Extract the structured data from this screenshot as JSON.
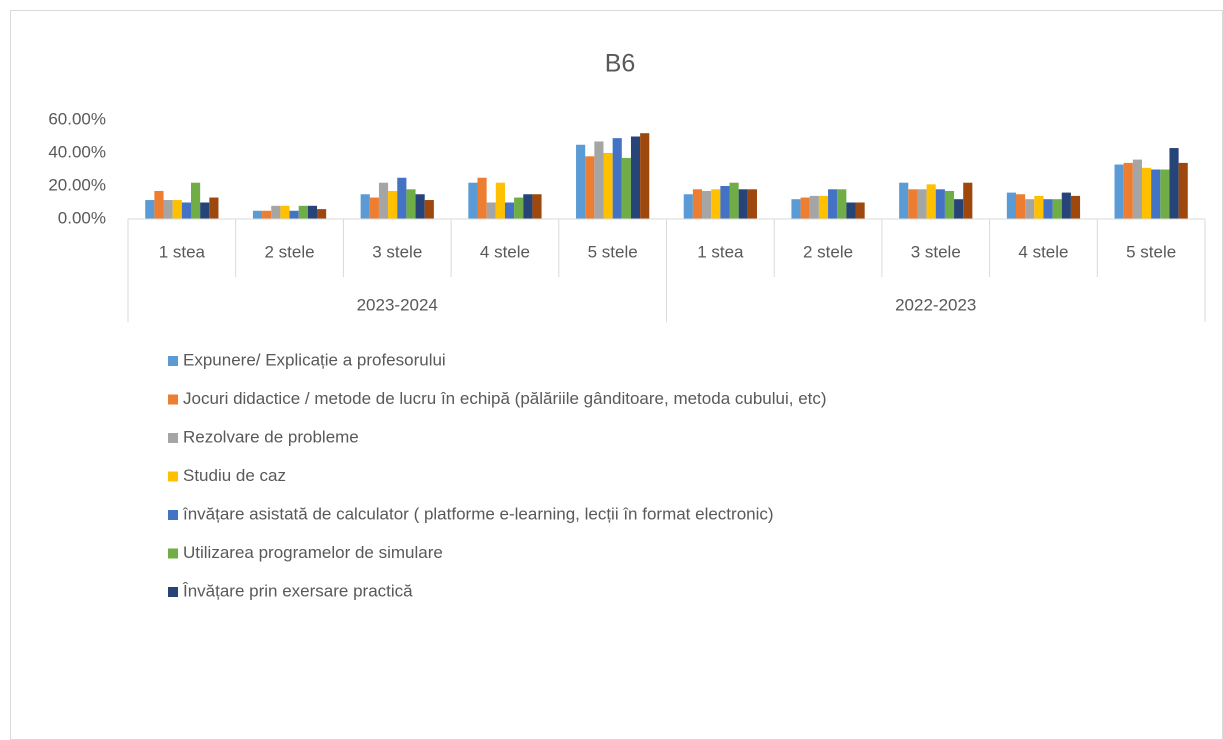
{
  "chart_data": {
    "type": "bar",
    "title": "B6",
    "groups": [
      {
        "name": "2023-2024",
        "categories": [
          "1 stea",
          "2 stele",
          "3 stele",
          "4 stele",
          "5 stele"
        ]
      },
      {
        "name": "2022-2023",
        "categories": [
          "1 stea",
          "2 stele",
          "3 stele",
          "4 stele",
          "5 stele"
        ]
      }
    ],
    "series": [
      {
        "name": "Expunere/ Explicație a profesorului",
        "color": "#5b9bd5",
        "values": [
          11.5,
          5,
          15,
          22,
          45,
          15,
          12,
          22,
          16,
          33
        ]
      },
      {
        "name": "Jocuri didactice / metode de lucru în echipă (pălăriile gânditoare, metoda cubului, etc)",
        "color": "#ed7d31",
        "values": [
          17,
          5,
          13,
          25,
          38,
          18,
          13,
          18,
          15,
          34
        ]
      },
      {
        "name": "Rezolvare de probleme",
        "color": "#a5a5a5",
        "values": [
          11.5,
          8,
          22,
          10,
          47,
          17,
          14,
          18,
          12,
          36
        ]
      },
      {
        "name": "Studiu de caz",
        "color": "#ffc000",
        "values": [
          11.5,
          8,
          17,
          22,
          40,
          18,
          14,
          21,
          14,
          31
        ]
      },
      {
        "name": "învățare asistată de calculator ( platforme e-learning, lecții în format electronic)",
        "color": "#4472c4",
        "values": [
          10,
          5,
          25,
          10,
          49,
          20,
          18,
          18,
          12,
          30
        ]
      },
      {
        "name": "Utilizarea programelor de simulare",
        "color": "#70ad47",
        "values": [
          22,
          8,
          18,
          13,
          37,
          22,
          18,
          17,
          12,
          30
        ]
      },
      {
        "name": "Învățare prin exersare practică",
        "color": "#264478",
        "values": [
          10,
          8,
          15,
          15,
          50,
          18,
          10,
          12,
          16,
          43
        ]
      },
      {
        "color": "#9e480e",
        "values": [
          13,
          6,
          11.5,
          15,
          52,
          18,
          10,
          22,
          14,
          34
        ]
      }
    ],
    "ylim": [
      0,
      60
    ],
    "yticks": [
      {
        "value": 0,
        "label": "0.00%"
      },
      {
        "value": 20,
        "label": "20.00%"
      },
      {
        "value": 40,
        "label": "40.00%"
      },
      {
        "value": 60,
        "label": "60.00%"
      }
    ]
  }
}
